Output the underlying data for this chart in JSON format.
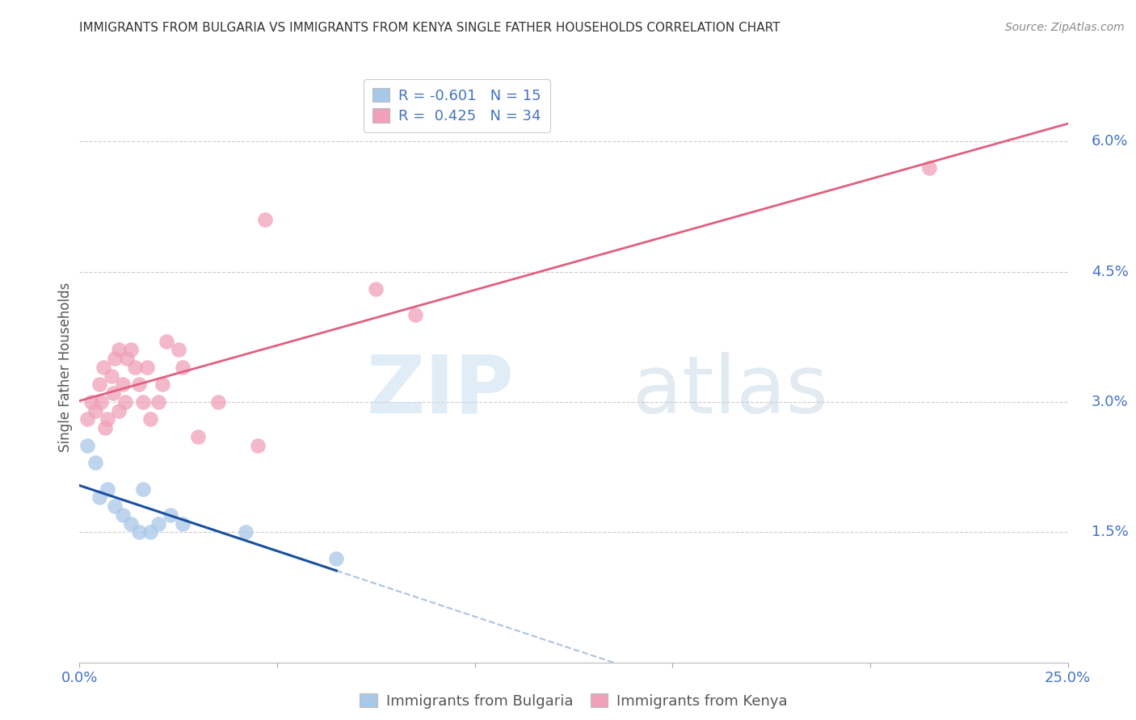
{
  "title": "IMMIGRANTS FROM BULGARIA VS IMMIGRANTS FROM KENYA SINGLE FATHER HOUSEHOLDS CORRELATION CHART",
  "source": "Source: ZipAtlas.com",
  "ylabel": "Single Father Households",
  "ytick_values": [
    1.5,
    3.0,
    4.5,
    6.0
  ],
  "xlim": [
    0.0,
    25.0
  ],
  "ylim": [
    0.0,
    6.8
  ],
  "legend_r_bulgaria": "-0.601",
  "legend_n_bulgaria": "15",
  "legend_r_kenya": "0.425",
  "legend_n_kenya": "34",
  "color_bulgaria": "#a8c8e8",
  "color_kenya": "#f0a0b8",
  "line_color_bulgaria": "#1a4fa0",
  "line_color_kenya": "#e06080",
  "bulgaria_x": [
    0.2,
    0.4,
    0.5,
    0.7,
    0.9,
    1.1,
    1.3,
    1.5,
    1.6,
    1.8,
    2.0,
    2.3,
    2.6,
    4.2,
    6.5
  ],
  "bulgaria_y": [
    2.5,
    2.3,
    1.9,
    2.0,
    1.8,
    1.7,
    1.6,
    1.5,
    2.0,
    1.5,
    1.6,
    1.7,
    1.6,
    1.5,
    1.2
  ],
  "kenya_x": [
    0.2,
    0.3,
    0.4,
    0.5,
    0.55,
    0.6,
    0.65,
    0.7,
    0.8,
    0.85,
    0.9,
    1.0,
    1.0,
    1.1,
    1.15,
    1.2,
    1.3,
    1.4,
    1.5,
    1.6,
    1.7,
    1.8,
    2.0,
    2.1,
    2.2,
    2.5,
    2.6,
    3.0,
    3.5,
    4.5,
    4.7,
    7.5,
    8.5,
    21.5
  ],
  "kenya_y": [
    2.8,
    3.0,
    2.9,
    3.2,
    3.0,
    3.4,
    2.7,
    2.8,
    3.3,
    3.1,
    3.5,
    3.6,
    2.9,
    3.2,
    3.0,
    3.5,
    3.6,
    3.4,
    3.2,
    3.0,
    3.4,
    2.8,
    3.0,
    3.2,
    3.7,
    3.6,
    3.4,
    2.6,
    3.0,
    2.5,
    5.1,
    4.3,
    4.0,
    5.7
  ]
}
